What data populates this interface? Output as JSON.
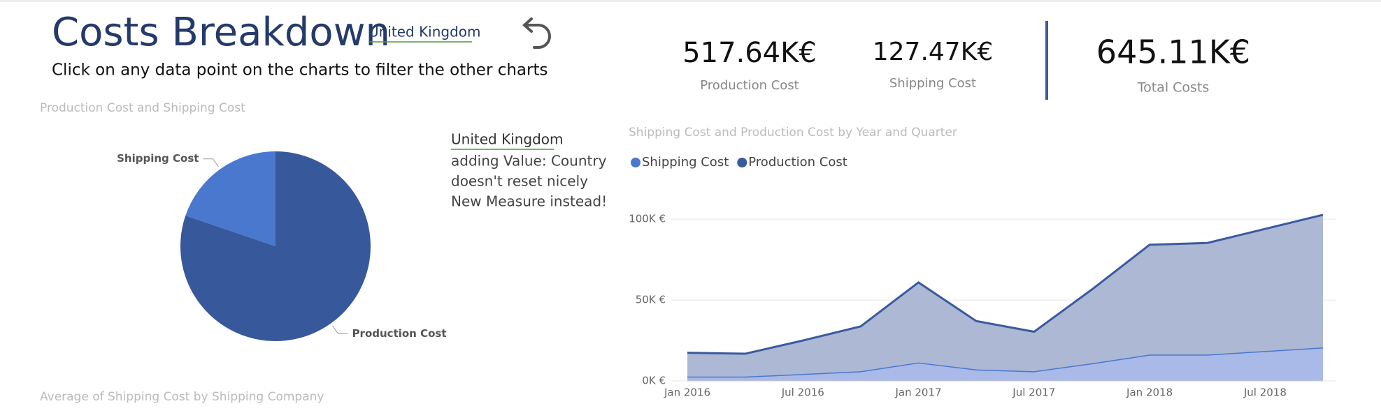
{
  "header": {
    "title": "Costs Breakdown",
    "filter": "United Kingdom",
    "subtitle": "Click on any data point on the charts to filter the other charts"
  },
  "kpis": [
    {
      "value": "517.64K€",
      "label": "Production Cost"
    },
    {
      "value": "127.47K€",
      "label": "Shipping Cost"
    },
    {
      "value": "645.11K€",
      "label": "Total Costs"
    }
  ],
  "note": {
    "link": "United Kingdom",
    "lines": [
      "adding Value: Country",
      "doesn't reset nicely",
      "New Measure instead!"
    ]
  },
  "chart_data": [
    {
      "type": "pie",
      "title": "Production Cost and Shipping Cost",
      "categories": [
        "Production Cost",
        "Shipping Cost"
      ],
      "values": [
        517.64,
        127.47
      ],
      "colors": [
        "#37589a",
        "#4a78cf"
      ]
    },
    {
      "type": "area",
      "stacked": true,
      "title": "Shipping Cost and Production Cost by Year and Quarter",
      "categories": [
        "Jan 2016",
        null,
        "Jul 2016",
        null,
        "Jan 2017",
        null,
        "Jul 2017",
        null,
        "Jan 2018",
        null,
        "Jul 2018",
        null
      ],
      "series": [
        {
          "name": "Shipping Cost",
          "color": "#4a77d0",
          "fill": "#a9b9e8",
          "values": [
            2700,
            2700,
            4300,
            6000,
            11400,
            7100,
            6000,
            10900,
            16300,
            16300,
            18500,
            20700
          ]
        },
        {
          "name": "Production Cost",
          "color": "#3a5a9e",
          "fill": "#acb8d4",
          "values": [
            14700,
            14100,
            20700,
            27700,
            49500,
            29900,
            24400,
            45600,
            67900,
            69000,
            75500,
            82000
          ]
        }
      ],
      "ylim": [
        0,
        110000
      ],
      "yticks": [
        {
          "value": 0,
          "label": "0K €"
        },
        {
          "value": 50000,
          "label": "50K €"
        },
        {
          "value": 100000,
          "label": "100K €"
        }
      ],
      "grid": true,
      "legend": "top-left"
    }
  ],
  "footer_chart_title": "Average of Shipping Cost by Shipping Company"
}
